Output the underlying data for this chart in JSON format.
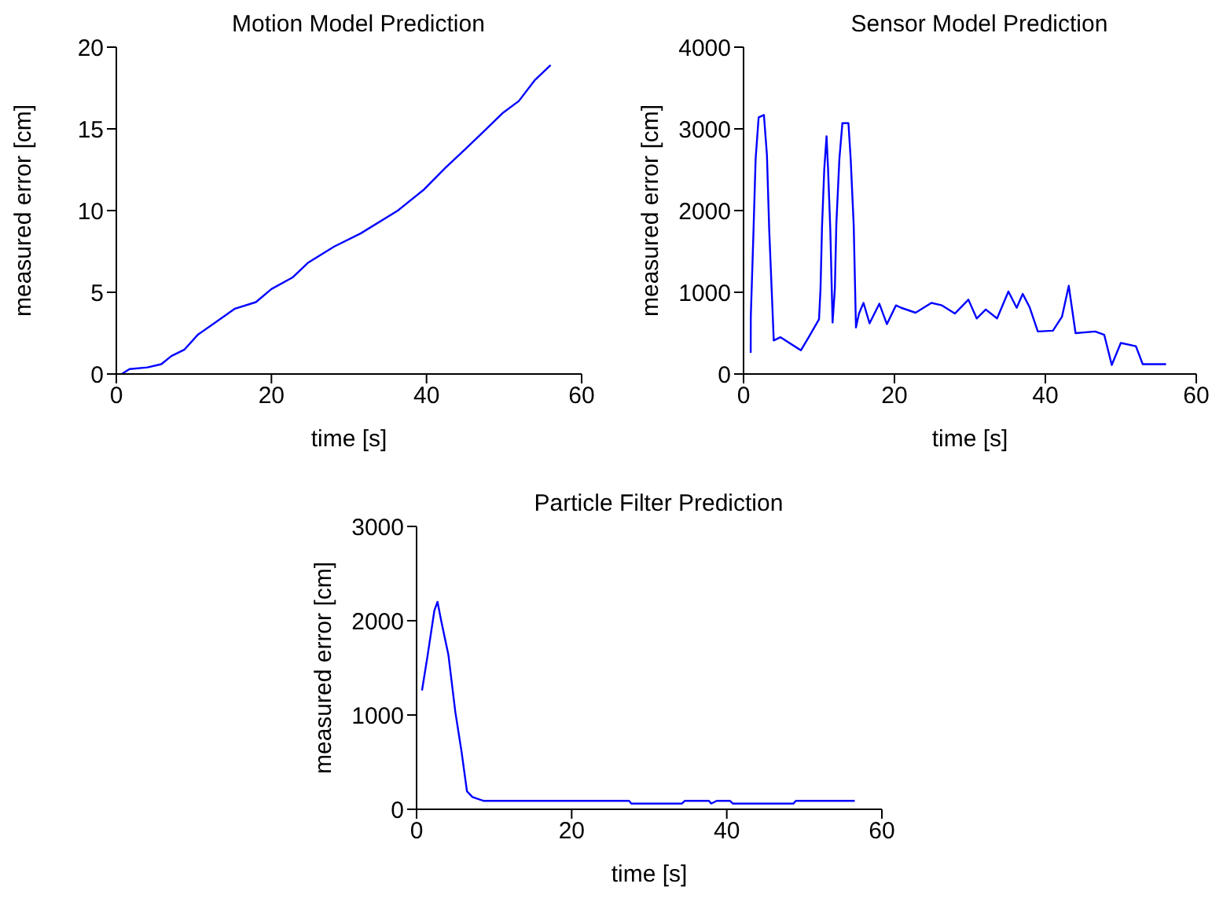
{
  "chart_data": [
    {
      "type": "line",
      "title": "Motion Model Prediction",
      "xlabel": "time [s]",
      "ylabel": "measured error [cm]",
      "xlim": [
        0,
        60
      ],
      "xticks": [
        0,
        20,
        40,
        60
      ],
      "ylim": [
        0,
        20
      ],
      "yticks": [
        0,
        5,
        10,
        15,
        20
      ],
      "grid": false,
      "marker": "none",
      "line_style": "solid",
      "series": [
        {
          "color": "#0000ff",
          "x": [
            0.7,
            1.7,
            4,
            5.8,
            7.1,
            8.8,
            10.5,
            12.9,
            15.3,
            18,
            20,
            22.7,
            24.7,
            28.1,
            31.5,
            36.3,
            39.7,
            42.4,
            45.1,
            47.5,
            49.9,
            51.9,
            54,
            56
          ],
          "values": [
            0,
            0.3,
            0.4,
            0.6,
            1.1,
            1.5,
            2.4,
            3.2,
            4.0,
            4.4,
            5.2,
            5.9,
            6.8,
            7.8,
            8.6,
            10.0,
            11.3,
            12.6,
            13.8,
            14.9,
            16.0,
            16.7,
            18.0,
            18.9
          ]
        }
      ]
    },
    {
      "type": "line",
      "title": "Sensor Model Prediction",
      "xlabel": "time [s]",
      "ylabel": "measured error [cm]",
      "xlim": [
        0,
        60
      ],
      "xticks": [
        0,
        20,
        40,
        60
      ],
      "ylim": [
        0,
        4000
      ],
      "yticks": [
        0,
        1000,
        2000,
        3000,
        4000
      ],
      "grid": false,
      "marker": "none",
      "line_style": "solid",
      "series": [
        {
          "color": "#0000ff",
          "x": [
            0.95,
            0.96,
            1.3,
            1.6,
            2.0,
            2.7,
            3.1,
            3.4,
            3.8,
            4.0,
            4.9,
            7.6,
            8.7,
            10,
            10.2,
            10.4,
            10.7,
            11,
            11.2,
            11.5,
            11.8,
            12.1,
            12.3,
            12.7,
            13.1,
            13.9,
            14.2,
            14.6,
            14.8,
            14.9,
            15.3,
            15.9,
            16.7,
            18,
            19,
            20.2,
            20.9,
            22.8,
            24.9,
            26.3,
            28,
            29.8,
            30.9,
            32.1,
            33.6,
            35.1,
            36.2,
            37,
            37.9,
            39,
            41,
            42.2,
            43.1,
            44,
            46.6,
            47.8,
            48.8,
            50,
            52,
            52.9,
            56
          ],
          "values": [
            260,
            700,
            1690,
            2630,
            3140,
            3170,
            2680,
            1770,
            870,
            410,
            450,
            290,
            460,
            670,
            1040,
            1800,
            2510,
            2910,
            2510,
            1760,
            630,
            1040,
            1840,
            2630,
            3070,
            3070,
            2630,
            1820,
            980,
            570,
            740,
            870,
            620,
            860,
            610,
            840,
            810,
            750,
            870,
            840,
            740,
            910,
            680,
            790,
            680,
            1010,
            810,
            980,
            820,
            520,
            530,
            700,
            1080,
            500,
            520,
            480,
            110,
            380,
            340,
            120,
            120
          ]
        }
      ]
    },
    {
      "type": "line",
      "title": "Particle Filter Prediction",
      "xlabel": "time [s]",
      "ylabel": "measured error [cm]",
      "xlim": [
        0,
        60
      ],
      "xticks": [
        0,
        20,
        40,
        60
      ],
      "ylim": [
        0,
        3000
      ],
      "yticks": [
        0,
        1000,
        2000,
        3000
      ],
      "grid": false,
      "marker": "none",
      "line_style": "solid",
      "series": [
        {
          "color": "#0000ff",
          "x": [
            0.7,
            1.4,
            2.3,
            2.7,
            3.2,
            4.1,
            5.0,
            5.8,
            6.5,
            7.2,
            8.6,
            27.4,
            27.7,
            34.2,
            34.6,
            37.7,
            38,
            38.7,
            40.4,
            40.8,
            48.6,
            48.9,
            56.5
          ],
          "values": [
            1260,
            1620,
            2110,
            2200,
            1990,
            1640,
            1030,
            610,
            190,
            130,
            90,
            90,
            60,
            60,
            90,
            90,
            60,
            90,
            90,
            60,
            60,
            90,
            90
          ]
        }
      ]
    }
  ]
}
